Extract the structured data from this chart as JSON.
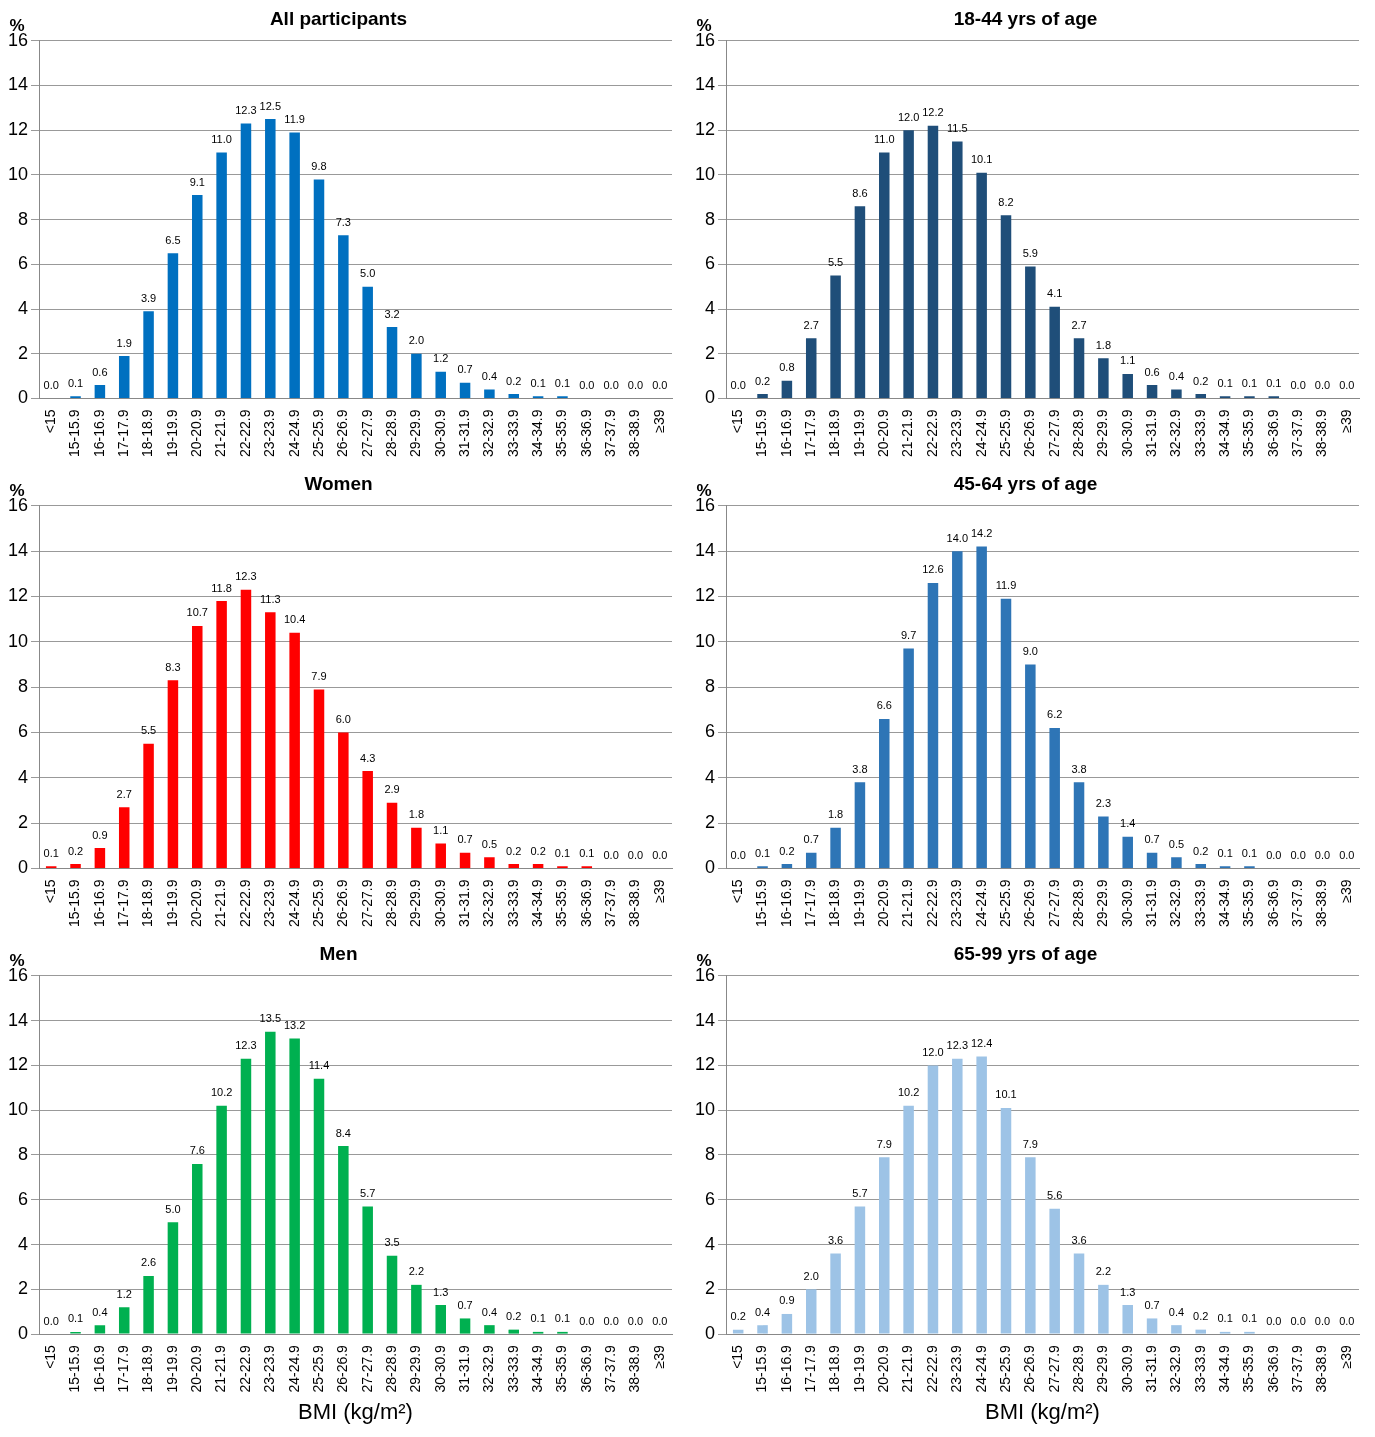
{
  "chart_data": [
    {
      "type": "bar",
      "title": "All participants",
      "ylabel": "%",
      "categories": [
        "<15",
        "15-15.9",
        "16-16.9",
        "17-17.9",
        "18-18.9",
        "19-19.9",
        "20-20.9",
        "21-21.9",
        "22-22.9",
        "23-23.9",
        "24-24.9",
        "25-25.9",
        "26-26.9",
        "27-27.9",
        "28-28.9",
        "29-29.9",
        "30-30.9",
        "31-31.9",
        "32-32.9",
        "33-33.9",
        "34-34.9",
        "35-35.9",
        "36-36.9",
        "37-37.9",
        "38-38.9",
        "≥39"
      ],
      "values": [
        0.0,
        0.1,
        0.6,
        1.9,
        3.9,
        6.5,
        9.1,
        11.0,
        12.3,
        12.5,
        11.9,
        9.8,
        7.3,
        5.0,
        3.2,
        2.0,
        1.2,
        0.7,
        0.4,
        0.2,
        0.1,
        0.1,
        0.0,
        0.0,
        0.0,
        0.0
      ],
      "value_labels": [
        "0.0",
        "0.1",
        "0.6",
        "1.9",
        "3.9",
        "6.5",
        "9.1",
        "11.0",
        "12.3",
        "12.5",
        "11.9",
        "9.8",
        "7.3",
        "5.0",
        "3.2",
        "2.0",
        "1.2",
        "0.7",
        "0.4",
        "0.2",
        "0.1",
        "0.1",
        "0.0",
        "0.0",
        "0.0",
        "0.0"
      ],
      "color": "#0070c0",
      "ylim": [
        0,
        16
      ],
      "yticks": [
        0,
        2,
        4,
        6,
        8,
        10,
        12,
        14,
        16
      ],
      "grid": "y"
    },
    {
      "type": "bar",
      "title": "18-44 yrs of age",
      "ylabel": "%",
      "categories": [
        "<15",
        "15-15.9",
        "16-16.9",
        "17-17.9",
        "18-18.9",
        "19-19.9",
        "20-20.9",
        "21-21.9",
        "22-22.9",
        "23-23.9",
        "24-24.9",
        "25-25.9",
        "26-26.9",
        "27-27.9",
        "28-28.9",
        "29-29.9",
        "30-30.9",
        "31-31.9",
        "32-32.9",
        "33-33.9",
        "34-34.9",
        "35-35.9",
        "36-36.9",
        "37-37.9",
        "38-38.9",
        "≥39"
      ],
      "values": [
        0.0,
        0.2,
        0.8,
        2.7,
        5.5,
        8.6,
        11.0,
        12.0,
        12.2,
        11.5,
        10.1,
        8.2,
        5.9,
        4.1,
        2.7,
        1.8,
        1.1,
        0.6,
        0.4,
        0.2,
        0.1,
        0.1,
        0.1,
        0.0,
        0.0,
        0.0
      ],
      "value_labels": [
        "0.0",
        "0.2",
        "0.8",
        "2.7",
        "5.5",
        "8.6",
        "11.0",
        "12.0",
        "12.2",
        "11.5",
        "10.1",
        "8.2",
        "5.9",
        "4.1",
        "2.7",
        "1.8",
        "1.1",
        "0.6",
        "0.4",
        "0.2",
        "0.1",
        "0.1",
        "0.1",
        "0.0",
        "0.0",
        "0.0"
      ],
      "color": "#1f4e79",
      "ylim": [
        0,
        16
      ],
      "yticks": [
        0,
        2,
        4,
        6,
        8,
        10,
        12,
        14,
        16
      ],
      "grid": "y"
    },
    {
      "type": "bar",
      "title": "Women",
      "ylabel": "%",
      "categories": [
        "<15",
        "15-15.9",
        "16-16.9",
        "17-17.9",
        "18-18.9",
        "19-19.9",
        "20-20.9",
        "21-21.9",
        "22-22.9",
        "23-23.9",
        "24-24.9",
        "25-25.9",
        "26-26.9",
        "27-27.9",
        "28-28.9",
        "29-29.9",
        "30-30.9",
        "31-31.9",
        "32-32.9",
        "33-33.9",
        "34-34.9",
        "35-35.9",
        "36-36.9",
        "37-37.9",
        "38-38.9",
        "≥39"
      ],
      "values": [
        0.1,
        0.2,
        0.9,
        2.7,
        5.5,
        8.3,
        10.7,
        11.8,
        12.3,
        11.3,
        10.4,
        7.9,
        6.0,
        4.3,
        2.9,
        1.8,
        1.1,
        0.7,
        0.5,
        0.2,
        0.2,
        0.1,
        0.1,
        0.0,
        0.0,
        0.0
      ],
      "value_labels": [
        "0.1",
        "0.2",
        "0.9",
        "2.7",
        "5.5",
        "8.3",
        "10.7",
        "11.8",
        "12.3",
        "11.3",
        "10.4",
        "7.9",
        "6.0",
        "4.3",
        "2.9",
        "1.8",
        "1.1",
        "0.7",
        "0.5",
        "0.2",
        "0.2",
        "0.1",
        "0.1",
        "0.0",
        "0.0",
        "0.0"
      ],
      "color": "#ff0000",
      "ylim": [
        0,
        16
      ],
      "yticks": [
        0,
        2,
        4,
        6,
        8,
        10,
        12,
        14,
        16
      ],
      "grid": "y"
    },
    {
      "type": "bar",
      "title": "45-64 yrs of age",
      "ylabel": "%",
      "categories": [
        "<15",
        "15-15.9",
        "16-16.9",
        "17-17.9",
        "18-18.9",
        "19-19.9",
        "20-20.9",
        "21-21.9",
        "22-22.9",
        "23-23.9",
        "24-24.9",
        "25-25.9",
        "26-26.9",
        "27-27.9",
        "28-28.9",
        "29-29.9",
        "30-30.9",
        "31-31.9",
        "32-32.9",
        "33-33.9",
        "34-34.9",
        "35-35.9",
        "36-36.9",
        "37-37.9",
        "38-38.9",
        "≥39"
      ],
      "values": [
        0.0,
        0.1,
        0.2,
        0.7,
        1.8,
        3.8,
        6.6,
        9.7,
        12.6,
        14.0,
        14.2,
        11.9,
        9.0,
        6.2,
        3.8,
        2.3,
        1.4,
        0.7,
        0.5,
        0.2,
        0.1,
        0.1,
        0.0,
        0.0,
        0.0,
        0.0
      ],
      "value_labels": [
        "0.0",
        "0.1",
        "0.2",
        "0.7",
        "1.8",
        "3.8",
        "6.6",
        "9.7",
        "12.6",
        "14.0",
        "14.2",
        "11.9",
        "9.0",
        "6.2",
        "3.8",
        "2.3",
        "1.4",
        "0.7",
        "0.5",
        "0.2",
        "0.1",
        "0.1",
        "0.0",
        "0.0",
        "0.0",
        "0.0"
      ],
      "color": "#2e75b6",
      "ylim": [
        0,
        16
      ],
      "yticks": [
        0,
        2,
        4,
        6,
        8,
        10,
        12,
        14,
        16
      ],
      "grid": "y"
    },
    {
      "type": "bar",
      "title": "Men",
      "ylabel": "%",
      "xlabel": "BMI (kg/m²)",
      "categories": [
        "<15",
        "15-15.9",
        "16-16.9",
        "17-17.9",
        "18-18.9",
        "19-19.9",
        "20-20.9",
        "21-21.9",
        "22-22.9",
        "23-23.9",
        "24-24.9",
        "25-25.9",
        "26-26.9",
        "27-27.9",
        "28-28.9",
        "29-29.9",
        "30-30.9",
        "31-31.9",
        "32-32.9",
        "33-33.9",
        "34-34.9",
        "35-35.9",
        "36-36.9",
        "37-37.9",
        "38-38.9",
        "≥39"
      ],
      "values": [
        0.0,
        0.1,
        0.4,
        1.2,
        2.6,
        5.0,
        7.6,
        10.2,
        12.3,
        13.5,
        13.2,
        11.4,
        8.4,
        5.7,
        3.5,
        2.2,
        1.3,
        0.7,
        0.4,
        0.2,
        0.1,
        0.1,
        0.0,
        0.0,
        0.0,
        0.0
      ],
      "value_labels": [
        "0.0",
        "0.1",
        "0.4",
        "1.2",
        "2.6",
        "5.0",
        "7.6",
        "10.2",
        "12.3",
        "13.5",
        "13.2",
        "11.4",
        "8.4",
        "5.7",
        "3.5",
        "2.2",
        "1.3",
        "0.7",
        "0.4",
        "0.2",
        "0.1",
        "0.1",
        "0.0",
        "0.0",
        "0.0",
        "0.0"
      ],
      "color": "#00b050",
      "ylim": [
        0,
        16
      ],
      "yticks": [
        0,
        2,
        4,
        6,
        8,
        10,
        12,
        14,
        16
      ],
      "grid": "y"
    },
    {
      "type": "bar",
      "title": "65-99 yrs of age",
      "ylabel": "%",
      "xlabel": "BMI (kg/m²)",
      "categories": [
        "<15",
        "15-15.9",
        "16-16.9",
        "17-17.9",
        "18-18.9",
        "19-19.9",
        "20-20.9",
        "21-21.9",
        "22-22.9",
        "23-23.9",
        "24-24.9",
        "25-25.9",
        "26-26.9",
        "27-27.9",
        "28-28.9",
        "29-29.9",
        "30-30.9",
        "31-31.9",
        "32-32.9",
        "33-33.9",
        "34-34.9",
        "35-35.9",
        "36-36.9",
        "37-37.9",
        "38-38.9",
        "≥39"
      ],
      "values": [
        0.2,
        0.4,
        0.9,
        2.0,
        3.6,
        5.7,
        7.9,
        10.2,
        12.0,
        12.3,
        12.4,
        10.1,
        7.9,
        5.6,
        3.6,
        2.2,
        1.3,
        0.7,
        0.4,
        0.2,
        0.1,
        0.1,
        0.0,
        0.0,
        0.0,
        0.0
      ],
      "value_labels": [
        "0.2",
        "0.4",
        "0.9",
        "2.0",
        "3.6",
        "5.7",
        "7.9",
        "10.2",
        "12.0",
        "12.3",
        "12.4",
        "10.1",
        "7.9",
        "5.6",
        "3.6",
        "2.2",
        "1.3",
        "0.7",
        "0.4",
        "0.2",
        "0.1",
        "0.1",
        "0.0",
        "0.0",
        "0.0",
        "0.0"
      ],
      "color": "#9dc3e6",
      "ylim": [
        0,
        16
      ],
      "yticks": [
        0,
        2,
        4,
        6,
        8,
        10,
        12,
        14,
        16
      ],
      "grid": "y"
    }
  ]
}
